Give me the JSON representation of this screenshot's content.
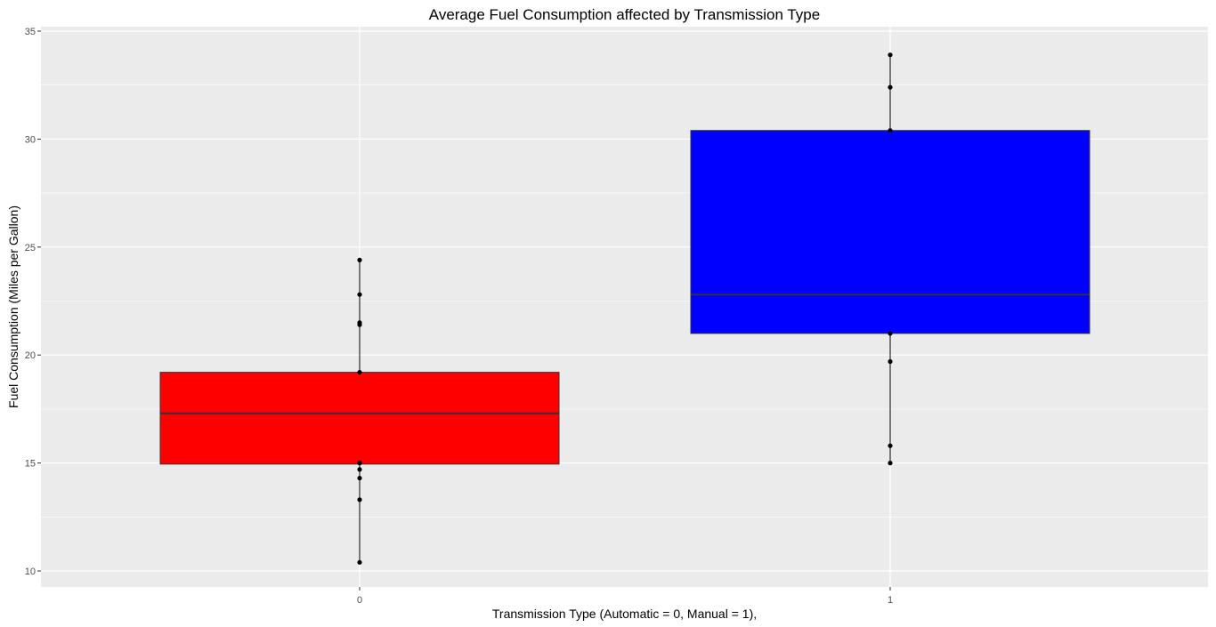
{
  "chart_data": {
    "type": "boxplot",
    "title": "Average Fuel Consumption affected by Transmission Type",
    "xlabel": "Transmission Type (Automatic = 0, Manual = 1),",
    "ylabel": "Fuel Consumption (Miles per Gallon)",
    "categories": [
      "0",
      "1"
    ],
    "ylim": [
      9.2,
      35.0
    ],
    "yticks": [
      10,
      15,
      20,
      25,
      30,
      35
    ],
    "grid": true,
    "panel_background": "#EBEBEB",
    "grid_color": "#FFFFFF",
    "boxes": [
      {
        "category": "0",
        "fill": "#FF0000",
        "q1": 14.95,
        "median": 17.3,
        "q3": 19.2,
        "whisker_low": 10.4,
        "whisker_high": 24.4,
        "points": [
          10.4,
          13.3,
          14.3,
          14.7,
          15.0,
          19.2,
          21.4,
          21.5,
          22.8,
          24.4
        ]
      },
      {
        "category": "1",
        "fill": "#0000FF",
        "q1": 21.0,
        "median": 22.8,
        "q3": 30.4,
        "whisker_low": 15.0,
        "whisker_high": 33.9,
        "points": [
          15.0,
          15.8,
          19.7,
          21.0,
          30.4,
          32.4,
          33.9
        ]
      }
    ]
  }
}
